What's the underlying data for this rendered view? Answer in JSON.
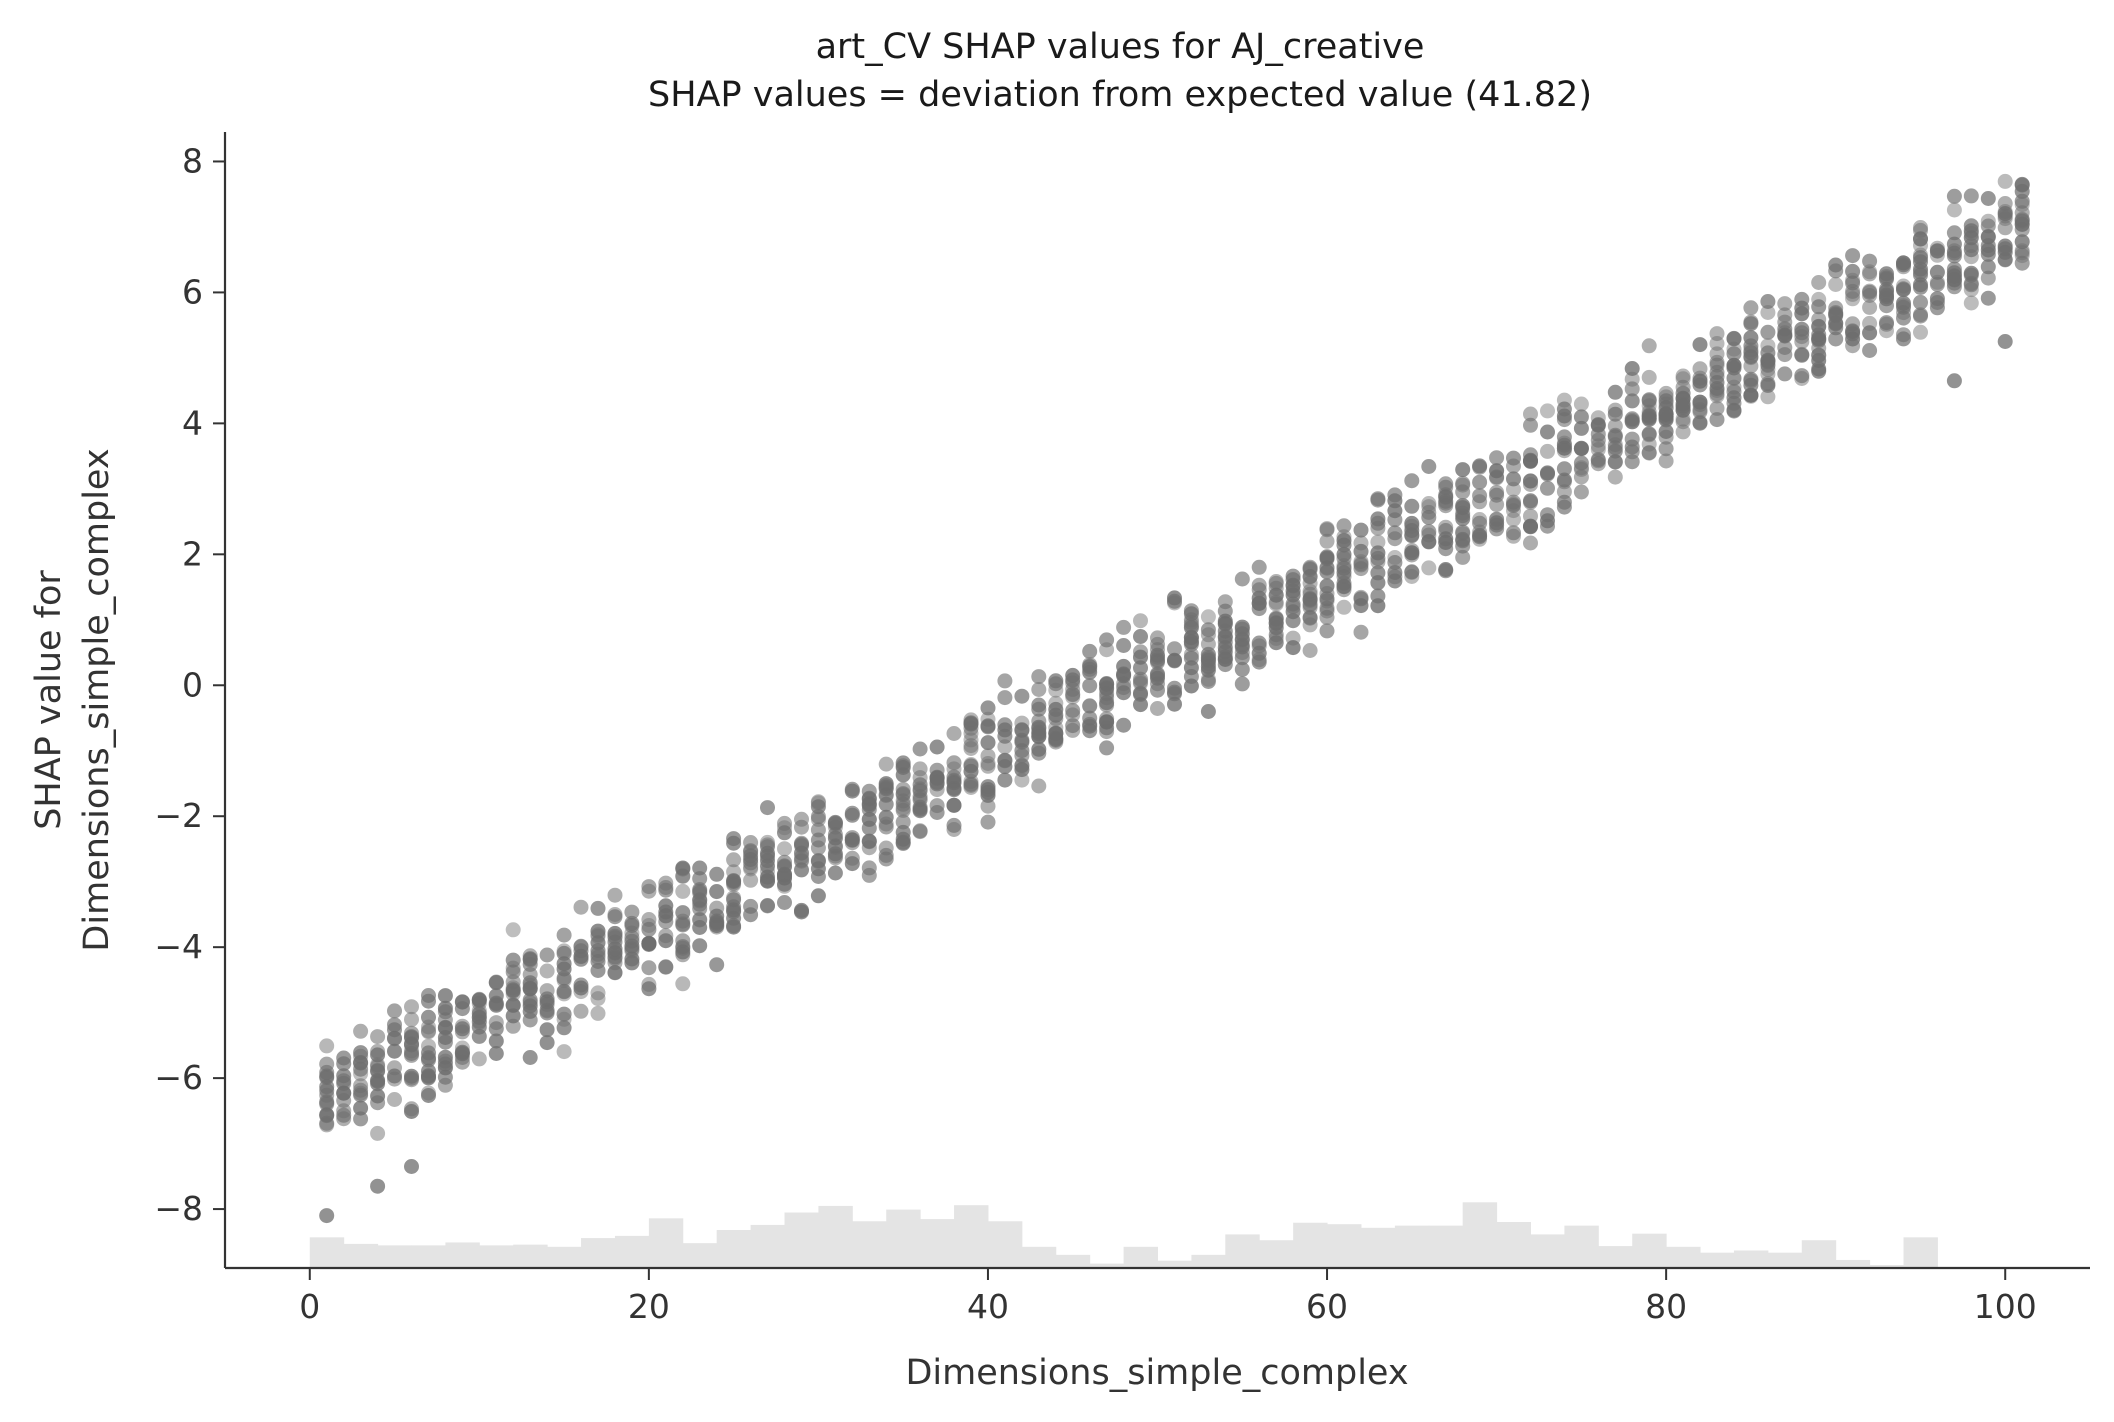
{
  "chart_data": {
    "type": "scatter",
    "title": "art_CV SHAP values for AJ_creative",
    "subtitle": "SHAP values = deviation from expected value (41.82)",
    "xlabel": "Dimensions_simple_complex",
    "ylabel_line1": "SHAP value for",
    "ylabel_line2": "Dimensions_simple_complex",
    "xlim": [
      -5,
      105
    ],
    "ylim": [
      -8.9,
      8.45
    ],
    "x_ticks": [
      0,
      20,
      40,
      60,
      80,
      100
    ],
    "x_tick_labels": [
      "0",
      "20",
      "40",
      "60",
      "80",
      "100"
    ],
    "y_ticks": [
      -8,
      -6,
      -4,
      -2,
      0,
      2,
      4,
      6,
      8
    ],
    "y_tick_labels": [
      "−8",
      "−6",
      "−4",
      "−2",
      "0",
      "2",
      "4",
      "6",
      "8"
    ],
    "grid": false,
    "point_color": "#6e6e6e",
    "histogram_color": "#e4e4e4",
    "trend": {
      "slope": 0.1335,
      "intercept": -6.45
    },
    "x_min": 1,
    "x_max": 101,
    "spread": 1.1,
    "outliers": [
      [
        1,
        -8.1
      ],
      [
        4,
        -7.65
      ],
      [
        6,
        -7.35
      ],
      [
        101,
        7.65
      ],
      [
        97,
        4.65
      ],
      [
        53,
        -0.4
      ],
      [
        100,
        5.25
      ]
    ],
    "histogram": {
      "bin_width": 2,
      "start": 0,
      "relative_heights": [
        0.42,
        0.33,
        0.31,
        0.31,
        0.35,
        0.31,
        0.32,
        0.29,
        0.41,
        0.44,
        0.68,
        0.34,
        0.52,
        0.59,
        0.76,
        0.85,
        0.64,
        0.8,
        0.67,
        0.86,
        0.64,
        0.29,
        0.18,
        0.06,
        0.29,
        0.1,
        0.18,
        0.46,
        0.38,
        0.62,
        0.6,
        0.55,
        0.58,
        0.58,
        0.9,
        0.63,
        0.46,
        0.58,
        0.3,
        0.47,
        0.29,
        0.21,
        0.24,
        0.21,
        0.38,
        0.11,
        0.04,
        0.42
      ],
      "max_height": 0.27
    }
  }
}
